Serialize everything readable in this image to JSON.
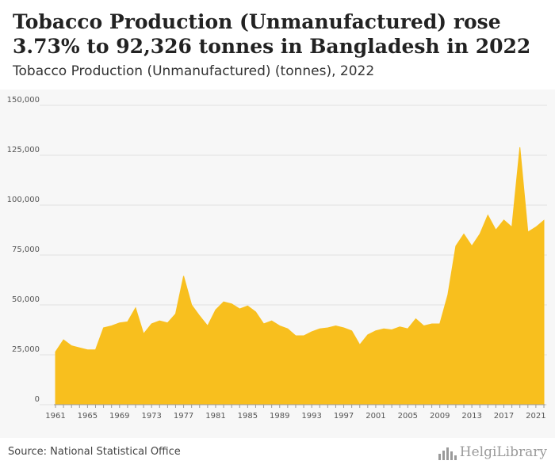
{
  "header": {
    "title": "Tobacco Production (Unmanufactured) rose 3.73% to 92,326 tonnes in Bangladesh in 2022",
    "subtitle": "Tobacco Production (Unmanufactured) (tonnes), 2022"
  },
  "footer": {
    "source": "Source: National Statistical Office",
    "logo_text": "HelgiLibrary"
  },
  "colors": {
    "area_fill": "#f8bf1e",
    "grid": "#e2e2e2",
    "background": "#f7f7f7"
  },
  "chart_data": {
    "type": "area",
    "title": "Tobacco Production (Unmanufactured) (tonnes), 2022",
    "xlabel": "",
    "ylabel": "",
    "ylim": [
      0,
      150000
    ],
    "yticks": [
      0,
      25000,
      50000,
      75000,
      100000,
      125000,
      150000
    ],
    "ytick_labels": [
      "0",
      "25,000",
      "50,000",
      "75,000",
      "100,000",
      "125,000",
      "150,000"
    ],
    "xticks": [
      1961,
      1965,
      1969,
      1973,
      1977,
      1981,
      1985,
      1989,
      1993,
      1997,
      2001,
      2005,
      2009,
      2013,
      2017,
      2021
    ],
    "grid": true,
    "legend": "none",
    "x": [
      1961,
      1962,
      1963,
      1964,
      1965,
      1966,
      1967,
      1968,
      1969,
      1970,
      1971,
      1972,
      1973,
      1974,
      1975,
      1976,
      1977,
      1978,
      1979,
      1980,
      1981,
      1982,
      1983,
      1984,
      1985,
      1986,
      1987,
      1988,
      1989,
      1990,
      1991,
      1992,
      1993,
      1994,
      1995,
      1996,
      1997,
      1998,
      1999,
      2000,
      2001,
      2002,
      2003,
      2004,
      2005,
      2006,
      2007,
      2008,
      2009,
      2010,
      2011,
      2012,
      2013,
      2014,
      2015,
      2016,
      2017,
      2018,
      2019,
      2020,
      2021,
      2022
    ],
    "series": [
      {
        "values": [
          26500,
          32500,
          29500,
          28500,
          27500,
          27500,
          38500,
          39500,
          41000,
          41500,
          48500,
          35500,
          40500,
          42000,
          41000,
          45500,
          64500,
          50000,
          44500,
          39500,
          47500,
          51500,
          50500,
          48000,
          49500,
          46500,
          40500,
          42000,
          39500,
          38000,
          34500,
          34500,
          36500,
          38000,
          38500,
          39500,
          38500,
          37000,
          30000,
          35000,
          37000,
          38000,
          37500,
          39000,
          38000,
          43000,
          39500,
          40500,
          40500,
          55000,
          79500,
          85500,
          79500,
          85500,
          95000,
          87500,
          92500,
          89000,
          129000,
          86500,
          89000,
          92326
        ]
      }
    ]
  }
}
